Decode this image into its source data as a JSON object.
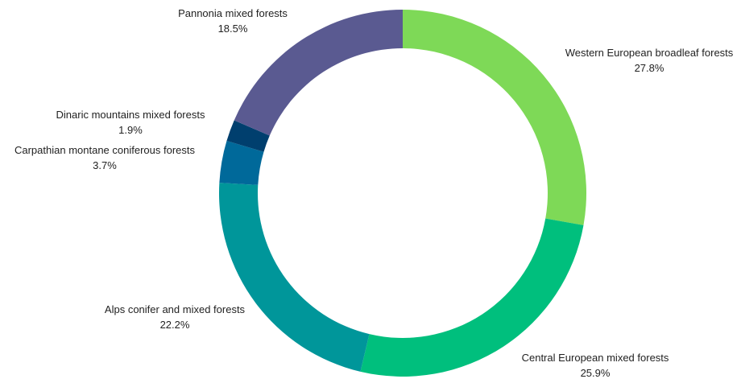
{
  "chart_data": {
    "type": "pie",
    "donut": true,
    "legend": "none",
    "slices": [
      {
        "label": "Western European broadleaf forests",
        "value_text": "27.8%",
        "value": 27.8,
        "color": "#7ed957"
      },
      {
        "label": "Central European mixed forests",
        "value_text": "25.9%",
        "value": 25.9,
        "color": "#00bf7d"
      },
      {
        "label": "Alps conifer and mixed forests",
        "value_text": "22.2%",
        "value": 22.2,
        "color": "#00969a"
      },
      {
        "label": "Carpathian montane coniferous forests",
        "value_text": "3.7%",
        "value": 3.7,
        "color": "#00699a"
      },
      {
        "label": "Dinaric mountains mixed forests",
        "value_text": "1.9%",
        "value": 1.9,
        "color": "#003f6e"
      },
      {
        "label": "Pannonia mixed forests",
        "value_text": "18.5%",
        "value": 18.5,
        "color": "#5a5a91"
      }
    ]
  }
}
